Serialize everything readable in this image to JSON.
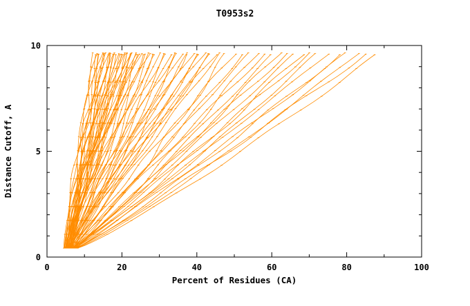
{
  "chart_data": {
    "type": "line",
    "title": "T0953s2",
    "xlabel": "Percent of Residues (CA)",
    "ylabel": "Distance Cutoff, A",
    "xlim": [
      0,
      100
    ],
    "ylim": [
      0,
      10
    ],
    "x_ticks_major": [
      0,
      20,
      40,
      60,
      80,
      100
    ],
    "x_ticks_minor": [
      10,
      30,
      50,
      70,
      90
    ],
    "y_ticks_major": [
      0,
      5,
      10
    ],
    "y_ticks_minor": [
      1,
      2,
      3,
      4,
      6,
      7,
      8,
      9
    ],
    "line_color": "#FF8C00",
    "axis_color": "#000000",
    "grid": false,
    "legend": "none",
    "y_start": 0.42,
    "y_end": 9.65,
    "curves_format": "Each curve is one model accuracy trace: [percent_of_residues_at_cutoff_0.42A, percent_of_residues_at_cutoff_9.65A, shape_exponent]; x(t)=x0+(x1-x0)*t^q along the distance-cutoff axis.",
    "curves": [
      [
        5.0,
        12.5,
        1.25
      ],
      [
        5.5,
        13,
        1.1
      ],
      [
        4.5,
        13.5,
        1.3
      ],
      [
        6,
        14,
        1.05
      ],
      [
        5,
        14.5,
        1.2
      ],
      [
        6.5,
        15,
        1.15
      ],
      [
        4.8,
        15.5,
        1.3
      ],
      [
        5.2,
        16,
        1.1
      ],
      [
        6.8,
        16.5,
        1.2
      ],
      [
        5.6,
        17,
        1.05
      ],
      [
        4.6,
        17.5,
        1.25
      ],
      [
        6.2,
        18,
        1.15
      ],
      [
        5.4,
        18.5,
        1.3
      ],
      [
        6.0,
        19,
        1.1
      ],
      [
        5.8,
        19.5,
        1.2
      ],
      [
        4.9,
        20,
        1.05
      ],
      [
        6.4,
        20.5,
        1.15
      ],
      [
        5.1,
        21,
        1.25
      ],
      [
        6.6,
        21.5,
        1.1
      ],
      [
        5.3,
        22,
        1.2
      ],
      [
        4.7,
        22.5,
        1.3
      ],
      [
        6.1,
        23,
        1.05
      ],
      [
        5.7,
        23.5,
        1.15
      ],
      [
        6.3,
        24,
        1.2
      ],
      [
        5.9,
        24.5,
        1.1
      ],
      [
        5.0,
        25,
        1.25
      ],
      [
        6.7,
        26,
        1.05
      ],
      [
        5.15,
        13.8,
        1.2
      ],
      [
        5.85,
        15.2,
        1.1
      ],
      [
        6.15,
        16.8,
        1.25
      ],
      [
        5.45,
        18.2,
        1.1
      ],
      [
        6.55,
        19.8,
        1.2
      ],
      [
        5.25,
        21.2,
        1.15
      ],
      [
        6.05,
        22.8,
        1.05
      ],
      [
        5.65,
        24.2,
        1.2
      ],
      [
        5.95,
        25.5,
        1.1
      ],
      [
        6.35,
        27.5,
        1.0
      ],
      [
        5.5,
        27,
        1.1
      ],
      [
        6.9,
        28,
        1.0
      ],
      [
        5.2,
        29,
        1.15
      ],
      [
        7.1,
        30,
        0.95
      ],
      [
        6.0,
        31,
        1.1
      ],
      [
        5.6,
        32,
        1.05
      ],
      [
        7.3,
        33,
        1.0
      ],
      [
        6.4,
        34,
        1.15
      ],
      [
        5.8,
        35,
        0.95
      ],
      [
        6.2,
        36,
        1.1
      ],
      [
        7.0,
        37,
        1.0
      ],
      [
        5.4,
        38,
        1.05
      ],
      [
        6.6,
        39,
        1.15
      ],
      [
        7.2,
        40,
        0.95
      ],
      [
        5.9,
        41,
        1.05
      ],
      [
        6.1,
        42,
        1.1
      ],
      [
        7.4,
        43,
        1.0
      ],
      [
        6.3,
        44,
        1.05
      ],
      [
        5.7,
        45,
        1.1
      ],
      [
        6.5,
        46,
        1.0
      ],
      [
        7.5,
        48,
        0.9
      ],
      [
        6.0,
        50,
        1.0
      ],
      [
        7.0,
        52,
        0.95
      ],
      [
        6.8,
        54,
        1.0
      ],
      [
        7.6,
        56,
        0.9
      ],
      [
        6.2,
        58,
        1.0
      ],
      [
        7.2,
        60,
        0.95
      ],
      [
        6.6,
        62,
        0.9
      ],
      [
        7.8,
        64,
        1.0
      ],
      [
        6.4,
        66,
        0.95
      ],
      [
        7.1,
        68,
        0.9
      ],
      [
        6.9,
        70,
        0.95
      ],
      [
        7.7,
        72,
        0.9
      ],
      [
        6.7,
        75,
        0.95
      ],
      [
        7.9,
        78,
        0.9
      ],
      [
        7.3,
        80,
        0.95
      ],
      [
        8.0,
        83,
        0.88
      ],
      [
        7.5,
        85,
        0.92
      ],
      [
        8.2,
        88,
        0.88
      ]
    ]
  }
}
